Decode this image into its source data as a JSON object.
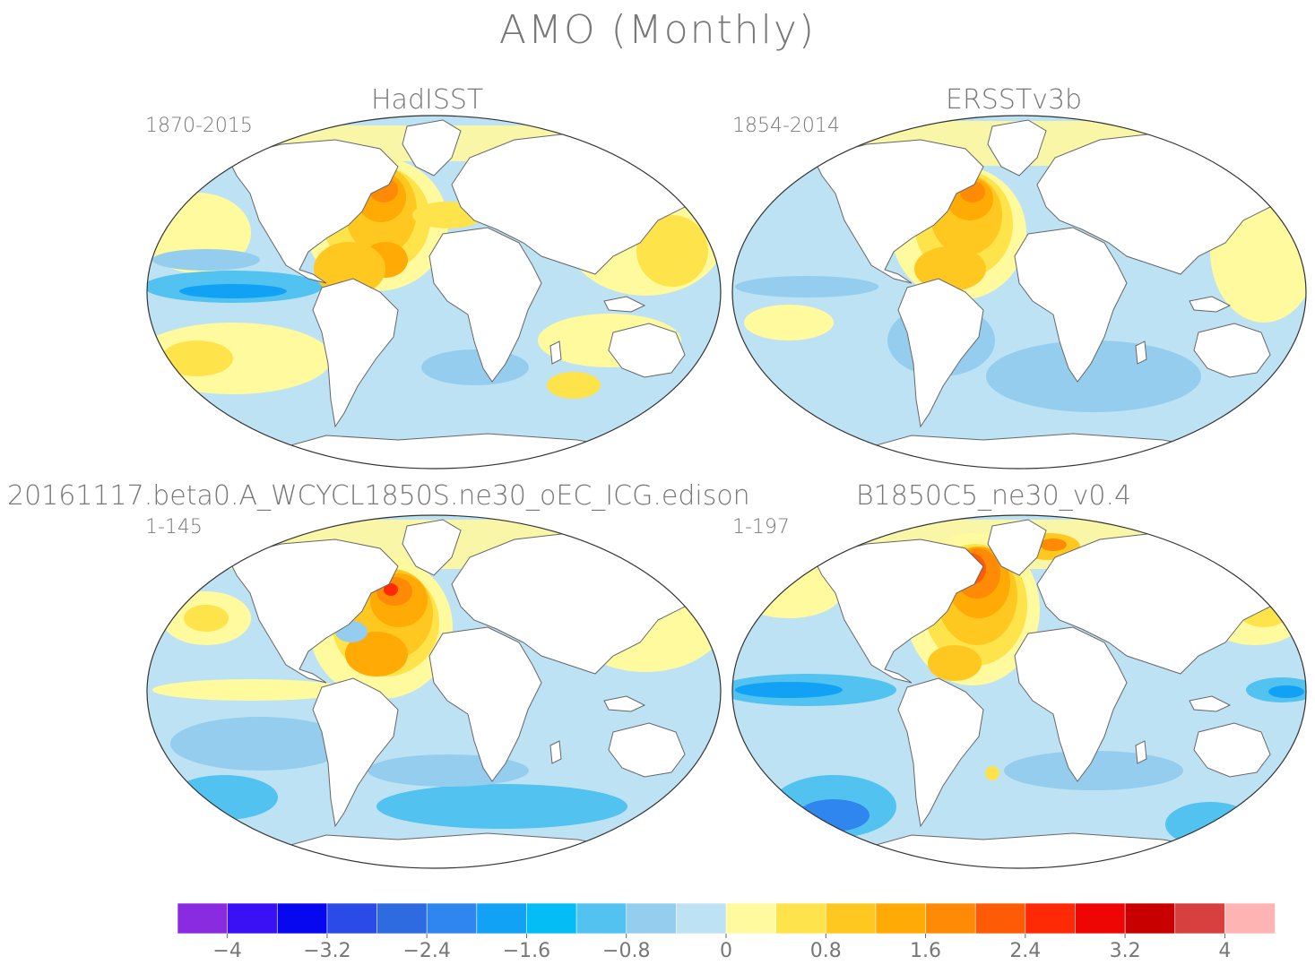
{
  "figure": {
    "title": "AMO (Monthly)"
  },
  "panels": [
    {
      "title": "HadISST",
      "range": "1870-2015"
    },
    {
      "title": "ERSSTv3b",
      "range": "1854-2014"
    },
    {
      "title": "20161117.beta0.A_WCYCL1850S.ne30_oEC_ICG.edison",
      "range": "1-145"
    },
    {
      "title": "B1850C5_ne30_v0.4",
      "range": "1-197"
    }
  ],
  "colorbar": {
    "colors": [
      "#8a2be2",
      "#3a10f5",
      "#0808f0",
      "#2a4be8",
      "#2f6be0",
      "#2f86ee",
      "#12a2f5",
      "#05bdf5",
      "#52c2f0",
      "#94cdee",
      "#bde2f4",
      "#fffa9e",
      "#ffe34a",
      "#ffc820",
      "#ffaa05",
      "#ff8a05",
      "#ff5a05",
      "#ff2a05",
      "#f00505",
      "#c80000",
      "#d84040",
      "#ffb4b4"
    ],
    "tick_labels": [
      "-4",
      "-3.2",
      "-2.4",
      "-1.6",
      "-0.8",
      "0",
      "0.8",
      "1.6",
      "2.4",
      "3.2",
      "4"
    ]
  }
}
